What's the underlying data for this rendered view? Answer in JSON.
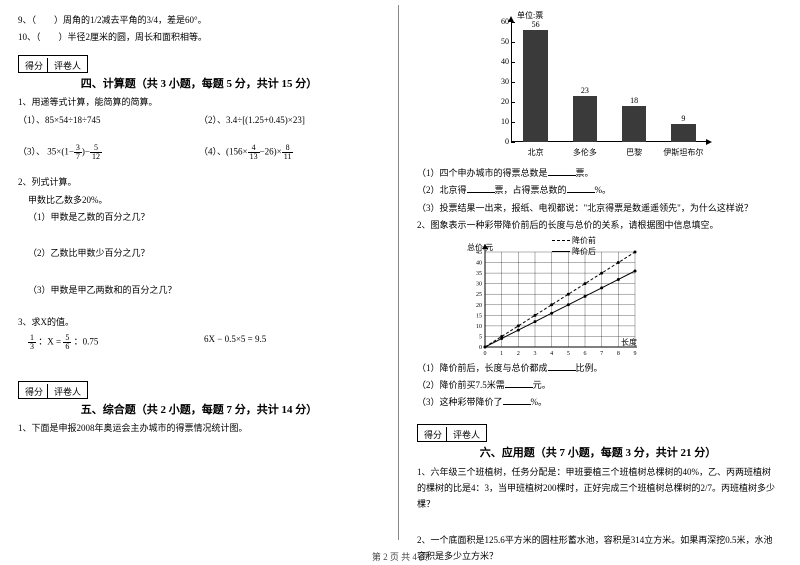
{
  "left": {
    "q9": "9、（　　）周角的1/2减去平角的3/4，差是60°。",
    "q10": "10、（　　）半径2厘米的圆，周长和面积相等。",
    "score_cells": [
      "得分",
      "评卷人"
    ],
    "sec4_title": "四、计算题（共 3 小题，每题 5 分，共计 15 分）",
    "s4_q1": "1、用递等式计算，能简算的简算。",
    "s4_q1_1_label": "（1）、85×54÷18÷745",
    "s4_q1_2_label": "（2）、3.4÷[(1.25+0.45)×23]",
    "s4_q1_3_label": "（3）、",
    "s4_q1_3_expr_a": "35×(1−",
    "s4_q1_3_fr1": {
      "n": "3",
      "d": "7"
    },
    "s4_q1_3_mid": ")−",
    "s4_q1_3_fr2": {
      "n": "5",
      "d": "12"
    },
    "s4_q1_4_label": "（4）、(156×",
    "s4_q1_4_fr1": {
      "n": "4",
      "d": "13"
    },
    "s4_q1_4_mid": "−26)×",
    "s4_q1_4_fr2": {
      "n": "8",
      "d": "11"
    },
    "s4_q2": "2、列式计算。",
    "s4_q2_intro": "甲数比乙数多20%。",
    "s4_q2_1": "（1）甲数是乙数的百分之几？",
    "s4_q2_2": "（2）乙数比甲数少百分之几？",
    "s4_q2_3": "（3）甲数是甲乙两数和的百分之几？",
    "s4_q3": "3、求X的值。",
    "s4_q3_fr1": {
      "n": "1",
      "d": "3"
    },
    "s4_q3_mid1": "：X =",
    "s4_q3_fr2": {
      "n": "5",
      "d": "6"
    },
    "s4_q3_mid2": "：0.75",
    "s4_q3_eq2": "6X − 0.5×5 = 9.5",
    "sec5_title": "五、综合题（共 2 小题，每题 7 分，共计 14 分）",
    "s5_q1": "1、下面是申报2008年奥运会主办城市的得票情况统计图。"
  },
  "right": {
    "barchart": {
      "unit": "单位:票",
      "ymax": 60,
      "ystep": 10,
      "yticks": [
        0,
        10,
        20,
        30,
        40,
        50,
        60
      ],
      "bars": [
        {
          "label": "北京",
          "value": 56,
          "color": "#3a3a3a"
        },
        {
          "label": "多伦多",
          "value": 23,
          "color": "#3a3a3a"
        },
        {
          "label": "巴黎",
          "value": 18,
          "color": "#3a3a3a"
        },
        {
          "label": "伊斯坦布尔",
          "value": 9,
          "color": "#3a3a3a"
        }
      ]
    },
    "bq1": "（1）四个申办城市的得票总数是",
    "bq1_tail": "票。",
    "bq2a": "（2）北京得",
    "bq2b": "票，占得票总数的",
    "bq2c": "%。",
    "bq3": "（3）投票结果一出来，报纸、电视都说：\"北京得票是数遥遥领先\"，为什么这样说？",
    "s2": "2、图象表示一种彩带降价前后的长度与总价的关系，请根据图中信息填空。",
    "linechart": {
      "xlabel": "长度/米",
      "ylabel": "总价/元",
      "xmax": 9,
      "ymax": 45,
      "legend_before": "降价前",
      "legend_after": "降价后",
      "before": [
        [
          0,
          0
        ],
        [
          1,
          5
        ],
        [
          2,
          10
        ],
        [
          3,
          15
        ],
        [
          4,
          20
        ],
        [
          5,
          25
        ],
        [
          6,
          30
        ],
        [
          7,
          35
        ],
        [
          8,
          40
        ],
        [
          9,
          45
        ]
      ],
      "after": [
        [
          0,
          0
        ],
        [
          1,
          4
        ],
        [
          2,
          8
        ],
        [
          3,
          12
        ],
        [
          4,
          16
        ],
        [
          5,
          20
        ],
        [
          6,
          24
        ],
        [
          7,
          28
        ],
        [
          8,
          32
        ],
        [
          9,
          36
        ]
      ],
      "dashed_before": true
    },
    "lq1a": "（1）降价前后，长度与总价都成",
    "lq1b": "比例。",
    "lq2a": "（2）降价前买7.5米需",
    "lq2b": "元。",
    "lq3a": "（3）这种彩带降价了",
    "lq3b": "%。",
    "score_cells": [
      "得分",
      "评卷人"
    ],
    "sec6_title": "六、应用题（共 7 小题，每题 3 分，共计 21 分）",
    "s6_q1": "1、六年级三个班植树，任务分配是：甲班要植三个班植树总棵树的40%，乙、丙两班植树的棵树的比是4：3，当甲班植树200棵时，正好完成三个班植树总棵树的2/7。丙班植树多少棵？",
    "s6_q2": "2、一个底面积是125.6平方米的圆柱形蓄水池，容积是314立方米。如果再深挖0.5米，水池容积是多少立方米？"
  },
  "footer": "第 2 页 共 4 页"
}
